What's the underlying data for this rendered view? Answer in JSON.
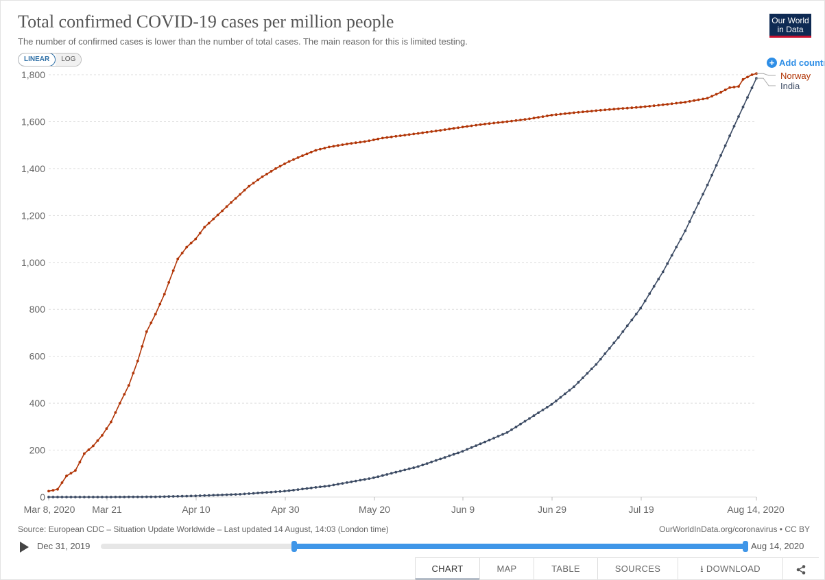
{
  "header": {
    "title": "Total confirmed COVID-19 cases per million people",
    "subtitle": "The number of confirmed cases is lower than the number of total cases. The main reason for this is limited testing.",
    "logo_line1": "Our World",
    "logo_line2": "in Data"
  },
  "controls": {
    "linear_label": "LINEAR",
    "log_label": "LOG",
    "add_country_label": "Add country",
    "add_icon": "plus-circle-icon"
  },
  "colors": {
    "norway": "#b13507",
    "india": "#3b4a63",
    "grid": "#dddddd",
    "accent": "#3f96e8"
  },
  "chart_data": {
    "type": "line",
    "title": "Total confirmed COVID-19 cases per million people",
    "ylim": [
      0,
      1800
    ],
    "y_ticks": [
      "0",
      "200",
      "400",
      "600",
      "800",
      "1,000",
      "1,200",
      "1,400",
      "1,600",
      "1,800"
    ],
    "x_ticks": [
      "Mar 8, 2020",
      "Mar 21",
      "Apr 10",
      "Apr 30",
      "May 20",
      "Jun 9",
      "Jun 29",
      "Jul 19",
      "Aug 14, 2020"
    ],
    "x_range": [
      "2020-03-08",
      "2020-08-14"
    ],
    "grid": "horizontal dashed",
    "legend": "right-end labels",
    "series": [
      {
        "name": "Norway",
        "color": "#b13507",
        "points": [
          [
            "2020-03-08",
            25
          ],
          [
            "2020-03-10",
            33
          ],
          [
            "2020-03-12",
            90
          ],
          [
            "2020-03-14",
            113
          ],
          [
            "2020-03-16",
            185
          ],
          [
            "2020-03-18",
            218
          ],
          [
            "2020-03-20",
            263
          ],
          [
            "2020-03-22",
            320
          ],
          [
            "2020-03-24",
            400
          ],
          [
            "2020-03-26",
            476
          ],
          [
            "2020-03-28",
            580
          ],
          [
            "2020-03-30",
            705
          ],
          [
            "2020-04-01",
            780
          ],
          [
            "2020-04-03",
            865
          ],
          [
            "2020-04-05",
            965
          ],
          [
            "2020-04-06",
            1015
          ],
          [
            "2020-04-08",
            1065
          ],
          [
            "2020-04-10",
            1100
          ],
          [
            "2020-04-12",
            1150
          ],
          [
            "2020-04-14",
            1185
          ],
          [
            "2020-04-16",
            1220
          ],
          [
            "2020-04-18",
            1256
          ],
          [
            "2020-04-20",
            1290
          ],
          [
            "2020-04-22",
            1325
          ],
          [
            "2020-04-25",
            1365
          ],
          [
            "2020-04-28",
            1400
          ],
          [
            "2020-05-01",
            1430
          ],
          [
            "2020-05-04",
            1455
          ],
          [
            "2020-05-07",
            1478
          ],
          [
            "2020-05-10",
            1492
          ],
          [
            "2020-05-14",
            1505
          ],
          [
            "2020-05-18",
            1515
          ],
          [
            "2020-05-22",
            1530
          ],
          [
            "2020-05-26",
            1540
          ],
          [
            "2020-05-30",
            1550
          ],
          [
            "2020-06-04",
            1563
          ],
          [
            "2020-06-09",
            1577
          ],
          [
            "2020-06-14",
            1590
          ],
          [
            "2020-06-19",
            1600
          ],
          [
            "2020-06-24",
            1612
          ],
          [
            "2020-06-29",
            1628
          ],
          [
            "2020-07-04",
            1638
          ],
          [
            "2020-07-09",
            1647
          ],
          [
            "2020-07-14",
            1655
          ],
          [
            "2020-07-19",
            1662
          ],
          [
            "2020-07-24",
            1672
          ],
          [
            "2020-07-29",
            1683
          ],
          [
            "2020-08-03",
            1700
          ],
          [
            "2020-08-06",
            1725
          ],
          [
            "2020-08-08",
            1745
          ],
          [
            "2020-08-10",
            1750
          ],
          [
            "2020-08-11",
            1780
          ],
          [
            "2020-08-13",
            1800
          ],
          [
            "2020-08-14",
            1805
          ]
        ]
      },
      {
        "name": "India",
        "color": "#3b4a63",
        "points": [
          [
            "2020-03-08",
            0
          ],
          [
            "2020-03-21",
            0
          ],
          [
            "2020-04-01",
            1
          ],
          [
            "2020-04-10",
            5
          ],
          [
            "2020-04-20",
            12
          ],
          [
            "2020-04-30",
            25
          ],
          [
            "2020-05-10",
            48
          ],
          [
            "2020-05-20",
            82
          ],
          [
            "2020-05-30",
            130
          ],
          [
            "2020-06-09",
            195
          ],
          [
            "2020-06-19",
            275
          ],
          [
            "2020-06-29",
            395
          ],
          [
            "2020-07-04",
            470
          ],
          [
            "2020-07-09",
            565
          ],
          [
            "2020-07-14",
            680
          ],
          [
            "2020-07-19",
            805
          ],
          [
            "2020-07-24",
            960
          ],
          [
            "2020-07-29",
            1135
          ],
          [
            "2020-08-03",
            1330
          ],
          [
            "2020-08-08",
            1540
          ],
          [
            "2020-08-14",
            1785
          ]
        ]
      }
    ]
  },
  "footer": {
    "source": "Source: European CDC – Situation Update Worldwide – Last updated 14 August, 14:03 (London time)",
    "credit": "OurWorldInData.org/coronavirus • CC BY"
  },
  "timeline": {
    "start_label": "Dec 31, 2019",
    "end_label": "Aug 14, 2020",
    "range_start": "2020-03-08",
    "range_end": "2020-08-14"
  },
  "tabs": {
    "chart": "CHART",
    "map": "MAP",
    "table": "TABLE",
    "sources": "SOURCES",
    "download": "DOWNLOAD"
  }
}
